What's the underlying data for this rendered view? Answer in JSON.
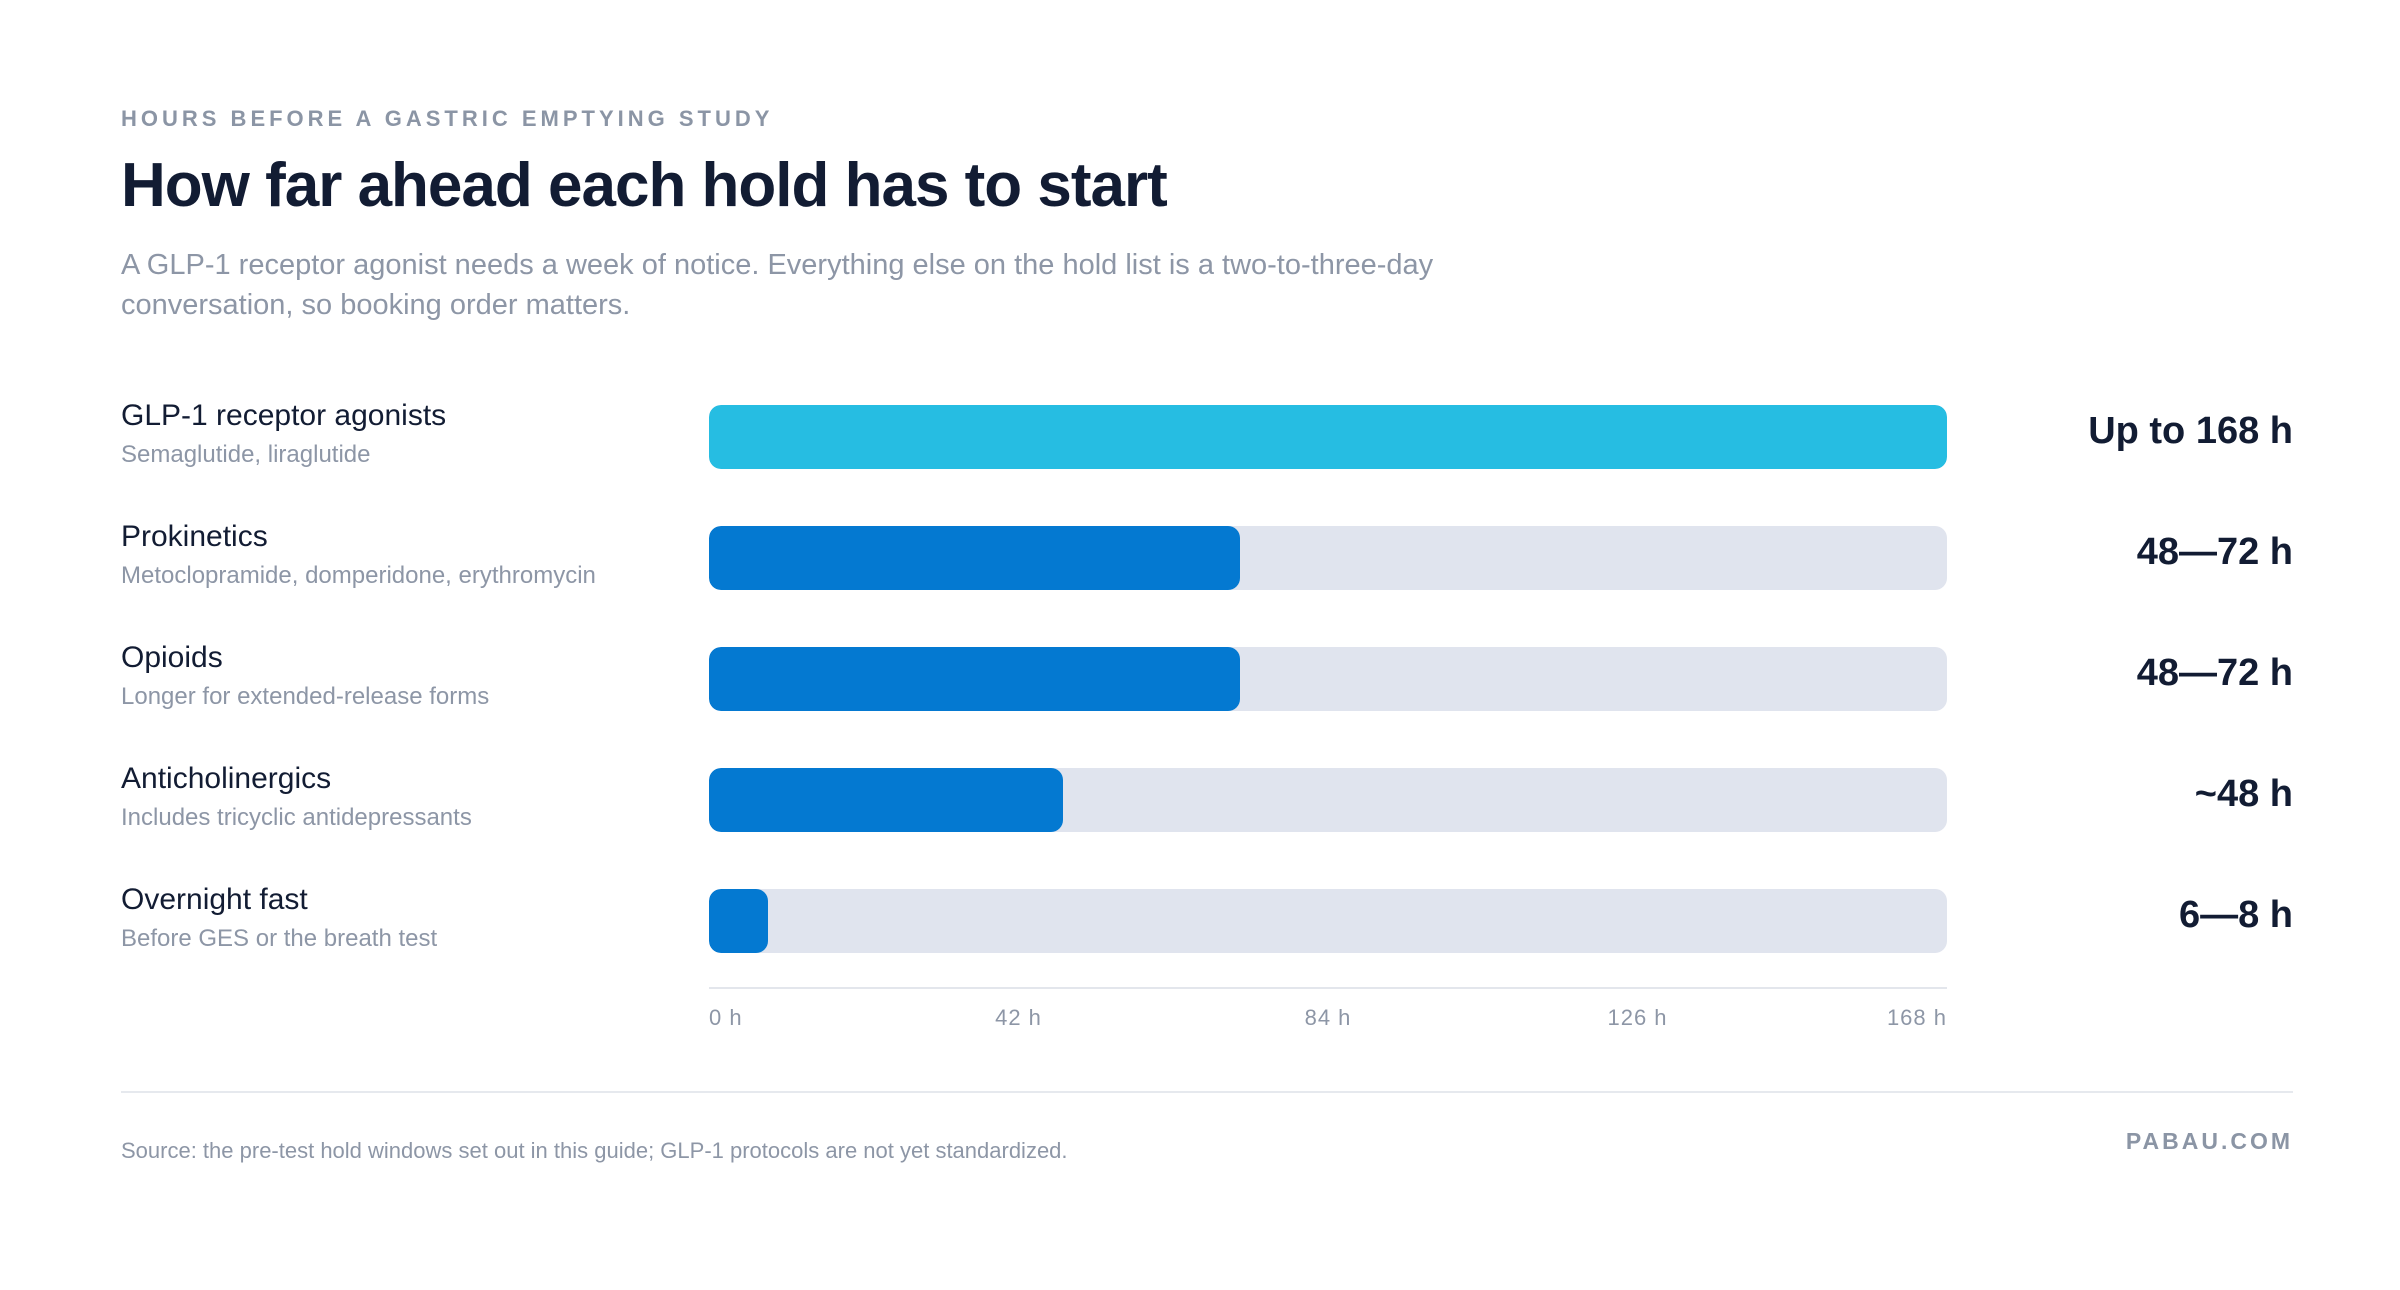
{
  "header": {
    "eyebrow": "HOURS BEFORE A GASTRIC EMPTYING STUDY",
    "title": "How far ahead each hold has to start",
    "subtitle": "A GLP-1 receptor agonist needs a week of notice. Everything else on the hold list is a two-to-three-day conversation, so booking order matters."
  },
  "colors": {
    "highlight_bar": "#26bde2",
    "bar": "#0479d1",
    "track": "#e0e4ee",
    "text_dark": "#121c33",
    "text_muted": "#8d96a6"
  },
  "chart_data": {
    "type": "bar",
    "orientation": "horizontal",
    "xlim": [
      0,
      168
    ],
    "x_unit": "h",
    "categories": [
      {
        "name": "GLP-1 receptor agonists",
        "description": "Semaglutide, liraglutide",
        "value": 168,
        "value_label": "Up to 168 h",
        "highlight": true
      },
      {
        "name": "Prokinetics",
        "description": "Metoclopramide, domperidone, erythromycin",
        "value": 72,
        "value_label": "48—72 h",
        "highlight": false
      },
      {
        "name": "Opioids",
        "description": "Longer for extended-release forms",
        "value": 72,
        "value_label": "48—72 h",
        "highlight": false
      },
      {
        "name": "Anticholinergics",
        "description": "Includes tricyclic antidepressants",
        "value": 48,
        "value_label": "~48 h",
        "highlight": false
      },
      {
        "name": "Overnight fast",
        "description": "Before GES or the breath test",
        "value": 8,
        "value_label": "6—8 h",
        "highlight": false
      }
    ],
    "x_ticks": [
      "0 h",
      "42 h",
      "84 h",
      "126 h",
      "168 h"
    ],
    "grid": false
  },
  "footer": {
    "source": "Source: the pre-test hold windows set out in this guide; GLP-1 protocols are not yet standardized.",
    "brand": "PABAU.COM"
  }
}
